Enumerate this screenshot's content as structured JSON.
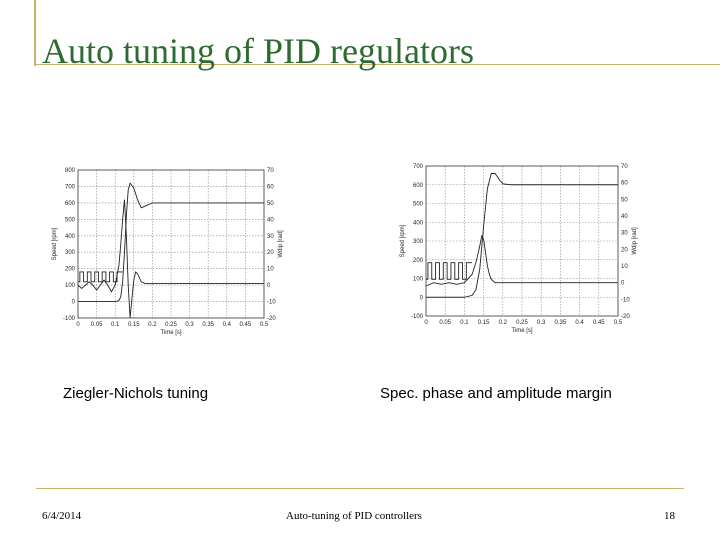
{
  "slide": {
    "title": "Auto tuning of PID regulators",
    "captions": {
      "left": "Ziegler-Nichols tuning",
      "right": "Spec. phase and amplitude margin"
    },
    "footer": {
      "date": "6/4/2014",
      "center": "Auto-tuning of PID controllers",
      "page": "18"
    },
    "colors": {
      "title": "#2e6b30",
      "rule": "#c8b26a"
    }
  },
  "chart_data": [
    {
      "type": "line",
      "title": "",
      "xlabel": "Time [s]",
      "ylabel": "Speed [rpm]",
      "y2label": "Wdip [rad]",
      "xlim": [
        0,
        0.5
      ],
      "ylim": [
        -100,
        800
      ],
      "y2lim": [
        -20,
        70
      ],
      "xticks": [
        0,
        0.05,
        0.1,
        0.15,
        0.2,
        0.25,
        0.3,
        0.35,
        0.4,
        0.45,
        0.5
      ],
      "yticks": [
        -100,
        0,
        100,
        200,
        300,
        400,
        500,
        600,
        700,
        800
      ],
      "y2ticks": [
        -20,
        -10,
        0,
        10,
        20,
        30,
        40,
        50,
        60,
        70
      ],
      "grid": true,
      "series": [
        {
          "x": [
            0,
            0.02,
            0.04,
            0.06,
            0.08,
            0.1,
            0.11,
            0.115,
            0.12,
            0.125,
            0.13,
            0.135,
            0.14,
            0.15,
            0.16,
            0.17,
            0.18,
            0.2,
            0.25,
            0.3,
            0.35,
            0.4,
            0.45,
            0.5
          ],
          "y": [
            0,
            0,
            0,
            0,
            0,
            0,
            5,
            30,
            120,
            300,
            520,
            680,
            720,
            690,
            620,
            570,
            580,
            600,
            600,
            600,
            600,
            600,
            600,
            600
          ]
        },
        {
          "x": [
            0,
            0.01,
            0.02,
            0.03,
            0.04,
            0.05,
            0.06,
            0.07,
            0.08,
            0.09,
            0.1,
            0.105,
            0.11,
            0.115,
            0.12,
            0.125,
            0.13,
            0.135,
            0.14,
            0.145,
            0.15,
            0.155,
            0.16,
            0.17,
            0.18,
            0.2,
            0.25,
            0.3,
            0.4,
            0.5
          ],
          "y": [
            0,
            -2,
            0,
            2,
            0,
            -3,
            0,
            3,
            0,
            -4,
            0,
            6,
            12,
            25,
            40,
            52,
            30,
            0,
            -20,
            -8,
            3,
            8,
            7,
            2,
            1,
            1,
            1,
            1,
            1,
            1
          ]
        },
        {
          "x": [
            0,
            0.005,
            0.005,
            0.015,
            0.015,
            0.025,
            0.025,
            0.035,
            0.035,
            0.045,
            0.045,
            0.055,
            0.055,
            0.065,
            0.065,
            0.075,
            0.075,
            0.085,
            0.085,
            0.095,
            0.095,
            0.105,
            0.105,
            0.12
          ],
          "y": [
            2,
            2,
            8,
            8,
            2,
            2,
            8,
            8,
            2,
            2,
            8,
            8,
            2,
            2,
            8,
            8,
            2,
            2,
            8,
            8,
            2,
            2,
            8,
            8
          ]
        }
      ]
    },
    {
      "type": "line",
      "title": "",
      "xlabel": "Time [s]",
      "ylabel": "Speed [rpm]",
      "y2label": "Wdip [rad]",
      "xlim": [
        0,
        0.5
      ],
      "ylim": [
        -100,
        700
      ],
      "y2lim": [
        -20,
        70
      ],
      "xticks": [
        0,
        0.05,
        0.1,
        0.15,
        0.2,
        0.25,
        0.3,
        0.35,
        0.4,
        0.45,
        0.5
      ],
      "yticks": [
        -100,
        0,
        100,
        200,
        300,
        400,
        500,
        600,
        700
      ],
      "y2ticks": [
        -20,
        -10,
        0,
        10,
        20,
        30,
        40,
        50,
        60,
        70
      ],
      "grid": true,
      "series": [
        {
          "x": [
            0,
            0.02,
            0.04,
            0.06,
            0.08,
            0.1,
            0.12,
            0.13,
            0.14,
            0.15,
            0.16,
            0.17,
            0.18,
            0.19,
            0.2,
            0.22,
            0.25,
            0.3,
            0.35,
            0.4,
            0.45,
            0.5
          ],
          "y": [
            0,
            0,
            0,
            0,
            0,
            0,
            10,
            40,
            150,
            380,
            580,
            660,
            660,
            630,
            605,
            600,
            600,
            600,
            600,
            600,
            600,
            600
          ]
        },
        {
          "x": [
            0,
            0.02,
            0.04,
            0.06,
            0.08,
            0.1,
            0.12,
            0.13,
            0.14,
            0.145,
            0.15,
            0.155,
            0.16,
            0.165,
            0.17,
            0.18,
            0.19,
            0.2,
            0.25,
            0.3,
            0.4,
            0.5
          ],
          "y": [
            -2,
            0,
            -1,
            0,
            -1,
            0,
            5,
            12,
            22,
            28,
            26,
            18,
            10,
            5,
            2,
            0,
            0,
            0,
            0,
            0,
            0,
            0
          ]
        },
        {
          "x": [
            0,
            0.005,
            0.005,
            0.015,
            0.015,
            0.025,
            0.025,
            0.035,
            0.035,
            0.045,
            0.045,
            0.055,
            0.055,
            0.065,
            0.065,
            0.075,
            0.075,
            0.085,
            0.085,
            0.095,
            0.095,
            0.105,
            0.105,
            0.12
          ],
          "y": [
            2,
            2,
            12,
            12,
            2,
            2,
            12,
            12,
            2,
            2,
            12,
            12,
            2,
            2,
            12,
            12,
            2,
            2,
            12,
            12,
            2,
            2,
            12,
            12
          ]
        }
      ]
    }
  ]
}
